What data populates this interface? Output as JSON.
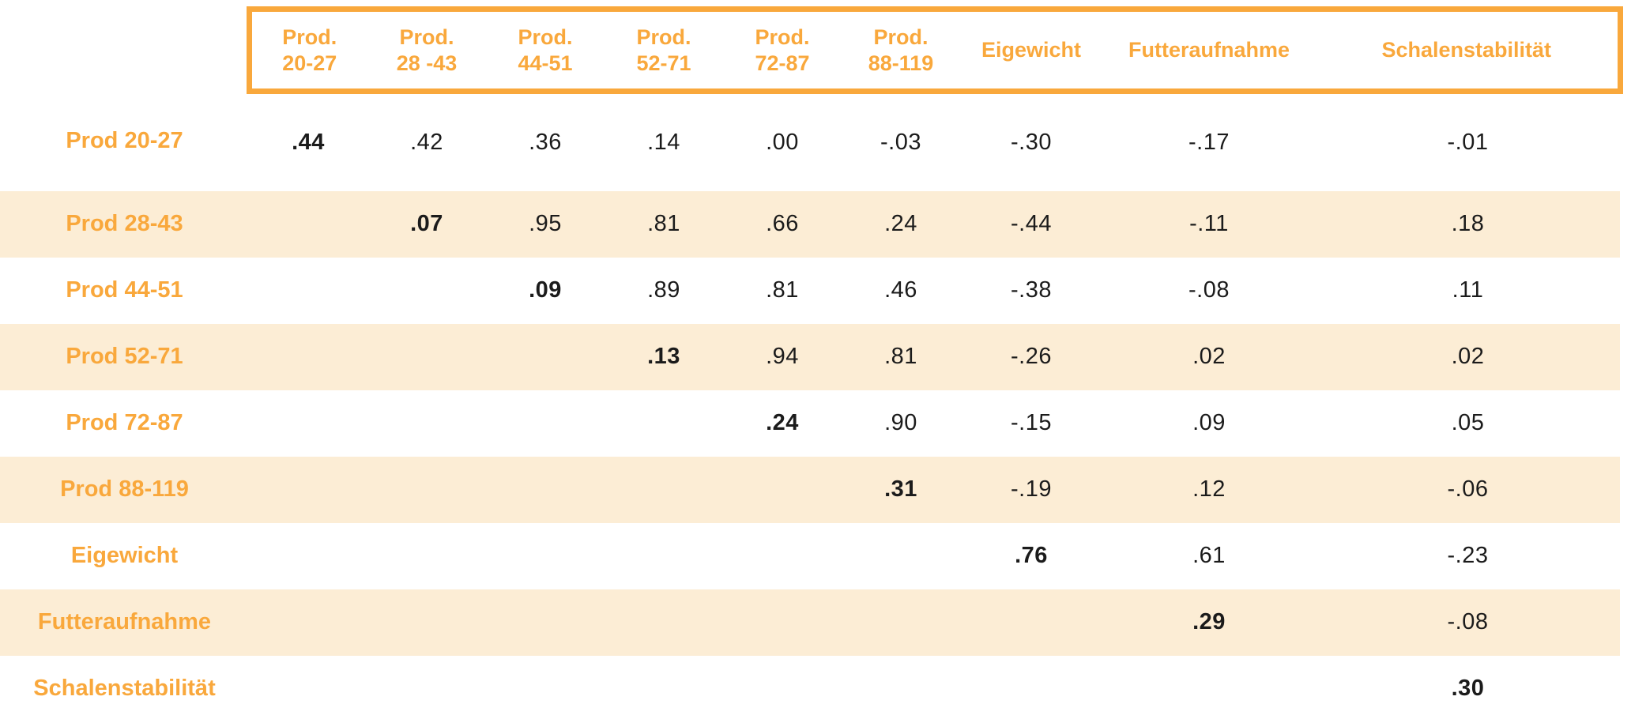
{
  "chart_data": {
    "type": "table",
    "description": "Correlation matrix (upper triangle) with bold diagonal values",
    "columns": [
      {
        "line1": "",
        "line2": ""
      },
      {
        "line1": "Prod.",
        "line2": "20-27"
      },
      {
        "line1": "Prod.",
        "line2": "28 -43"
      },
      {
        "line1": "Prod.",
        "line2": "44-51"
      },
      {
        "line1": "Prod.",
        "line2": "52-71"
      },
      {
        "line1": "Prod.",
        "line2": "72-87"
      },
      {
        "line1": "Prod.",
        "line2": "88-119"
      },
      {
        "line1": "Eigewicht",
        "line2": ""
      },
      {
        "line1": "Futteraufnahme",
        "line2": ""
      },
      {
        "line1": "Schalenstabilität",
        "line2": ""
      }
    ],
    "rows": [
      {
        "label": "Prod 20-27",
        "values": [
          ".44",
          ".42",
          ".36",
          ".14",
          ".00",
          "-.03",
          "-.30",
          "-.17",
          "-.01"
        ]
      },
      {
        "label": "Prod 28-43",
        "values": [
          "",
          ".07",
          ".95",
          ".81",
          ".66",
          ".24",
          "-.44",
          "-.11",
          ".18"
        ]
      },
      {
        "label": "Prod 44-51",
        "values": [
          "",
          "",
          ".09",
          ".89",
          ".81",
          ".46",
          "-.38",
          "-.08",
          ".11"
        ]
      },
      {
        "label": "Prod 52-71",
        "values": [
          "",
          "",
          "",
          ".13",
          ".94",
          ".81",
          "-.26",
          ".02",
          ".02"
        ]
      },
      {
        "label": "Prod 72-87",
        "values": [
          "",
          "",
          "",
          "",
          ".24",
          ".90",
          "-.15",
          ".09",
          ".05"
        ]
      },
      {
        "label": "Prod 88-119",
        "values": [
          "",
          "",
          "",
          "",
          "",
          ".31",
          "-.19",
          ".12",
          "-.06"
        ]
      },
      {
        "label": "Eigewicht",
        "values": [
          "",
          "",
          "",
          "",
          "",
          "",
          ".76",
          ".61",
          "-.23"
        ]
      },
      {
        "label": "Futteraufnahme",
        "values": [
          "",
          "",
          "",
          "",
          "",
          "",
          "",
          ".29",
          "-.08"
        ]
      },
      {
        "label": "Schalenstabilität",
        "values": [
          "",
          "",
          "",
          "",
          "",
          "",
          "",
          "",
          ".30"
        ]
      }
    ],
    "layout_hints": {
      "diagonal_bold": true,
      "alternating_row_background": true,
      "header_frame": true
    },
    "colors": {
      "accent_orange": "#F9A83C",
      "row_alt_cream": "#FCEDD5",
      "value_text": "#1B1B1B",
      "background": "#FFFFFF"
    }
  }
}
